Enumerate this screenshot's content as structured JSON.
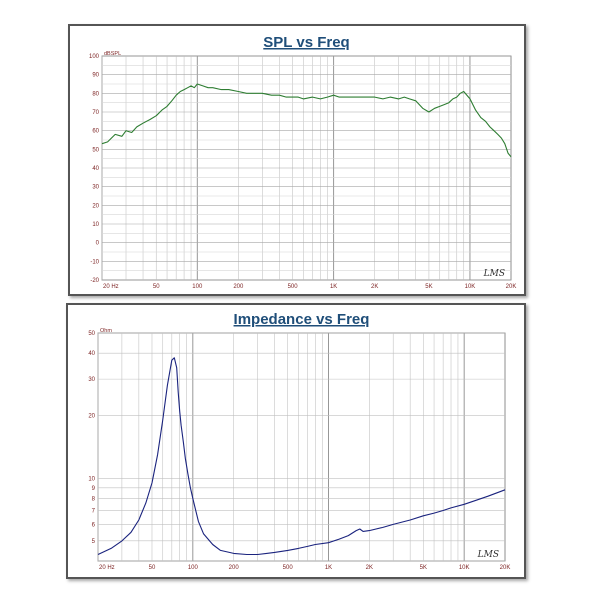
{
  "chart_data": [
    {
      "type": "line",
      "title": "SPL vs Freq",
      "ylabel": "dBSPL",
      "logo": "LMS",
      "x_scale": "log",
      "xlim": [
        20,
        20000
      ],
      "ylim": [
        -20,
        100
      ],
      "y_ticks": [
        100,
        90,
        80,
        70,
        60,
        50,
        40,
        30,
        20,
        10,
        0,
        -10,
        -20
      ],
      "x_ticks": [
        {
          "value": 20,
          "label": "20 Hz"
        },
        {
          "value": 50,
          "label": "50"
        },
        {
          "value": 100,
          "label": "100"
        },
        {
          "value": 200,
          "label": "200"
        },
        {
          "value": 500,
          "label": "500"
        },
        {
          "value": 1000,
          "label": "1K"
        },
        {
          "value": 2000,
          "label": "2K"
        },
        {
          "value": 5000,
          "label": "5K"
        },
        {
          "value": 10000,
          "label": "10K"
        },
        {
          "value": 20000,
          "label": "20K"
        }
      ],
      "grid": true,
      "series": [
        {
          "color": "#2e7d32",
          "x": [
            20,
            22,
            25,
            28,
            30,
            33,
            36,
            40,
            45,
            50,
            55,
            60,
            65,
            70,
            75,
            80,
            85,
            90,
            95,
            100,
            110,
            120,
            130,
            150,
            170,
            200,
            230,
            260,
            300,
            350,
            400,
            450,
            500,
            550,
            600,
            700,
            800,
            900,
            1000,
            1100,
            1200,
            1400,
            1600,
            1800,
            2000,
            2300,
            2600,
            3000,
            3300,
            3600,
            4000,
            4500,
            5000,
            5500,
            6000,
            6500,
            7000,
            7500,
            8000,
            8500,
            9000,
            10000,
            11000,
            12000,
            13000,
            14000,
            15000,
            16000,
            17000,
            18000,
            19000,
            20000
          ],
          "y": [
            53,
            54,
            58,
            57,
            60,
            59,
            62,
            64,
            66,
            68,
            71,
            73,
            76,
            79,
            81,
            82,
            83,
            84,
            83,
            85,
            84,
            83,
            83,
            82,
            82,
            81,
            80,
            80,
            80,
            79,
            79,
            78,
            78,
            78,
            77,
            78,
            77,
            78,
            79,
            78,
            78,
            78,
            78,
            78,
            78,
            77,
            78,
            77,
            78,
            77,
            76,
            72,
            70,
            72,
            73,
            74,
            75,
            77,
            78,
            80,
            81,
            77,
            71,
            67,
            65,
            62,
            60,
            58,
            56,
            53,
            48,
            46
          ]
        }
      ]
    },
    {
      "type": "line",
      "title": "Impedance vs Freq",
      "ylabel": "Ohm",
      "logo": "LMS",
      "x_scale": "log",
      "y_scale": "log",
      "xlim": [
        20,
        20000
      ],
      "ylim": [
        4,
        50
      ],
      "y_ticks": [
        50,
        40,
        30,
        20,
        10,
        9,
        8,
        7,
        6,
        5
      ],
      "x_ticks": [
        {
          "value": 20,
          "label": "20 Hz"
        },
        {
          "value": 50,
          "label": "50"
        },
        {
          "value": 100,
          "label": "100"
        },
        {
          "value": 200,
          "label": "200"
        },
        {
          "value": 500,
          "label": "500"
        },
        {
          "value": 1000,
          "label": "1K"
        },
        {
          "value": 2000,
          "label": "2K"
        },
        {
          "value": 5000,
          "label": "5K"
        },
        {
          "value": 10000,
          "label": "10K"
        },
        {
          "value": 20000,
          "label": "20K"
        }
      ],
      "grid": true,
      "series": [
        {
          "color": "#1a237e",
          "x": [
            20,
            25,
            30,
            35,
            40,
            45,
            50,
            55,
            60,
            65,
            70,
            73,
            76,
            78,
            80,
            82,
            85,
            88,
            92,
            96,
            100,
            110,
            120,
            140,
            160,
            200,
            250,
            300,
            350,
            400,
            500,
            600,
            700,
            800,
            1000,
            1200,
            1400,
            1600,
            1700,
            1800,
            2000,
            2500,
            3000,
            4000,
            5000,
            6000,
            7000,
            8000,
            10000,
            12000,
            15000,
            20000
          ],
          "y": [
            4.3,
            4.6,
            5.0,
            5.5,
            6.3,
            7.6,
            9.5,
            13,
            19,
            28,
            37,
            38,
            34,
            26,
            21,
            18,
            15,
            12.5,
            10.5,
            9,
            8,
            6.2,
            5.4,
            4.8,
            4.5,
            4.35,
            4.3,
            4.3,
            4.35,
            4.4,
            4.5,
            4.6,
            4.7,
            4.8,
            4.9,
            5.1,
            5.3,
            5.6,
            5.7,
            5.55,
            5.6,
            5.8,
            6.0,
            6.3,
            6.6,
            6.8,
            7.0,
            7.2,
            7.5,
            7.8,
            8.2,
            8.8
          ]
        }
      ]
    }
  ]
}
